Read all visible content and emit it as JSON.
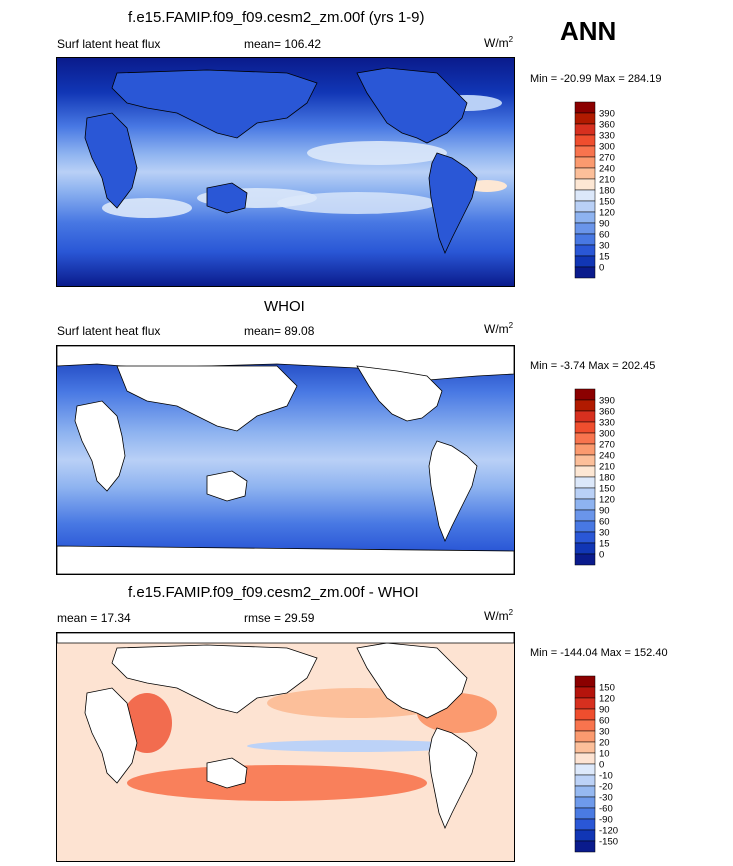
{
  "season": "ANN",
  "panels": [
    {
      "title": "f.e15.FAMIP.f09_f09.cesm2_zm.00f (yrs 1-9)",
      "left_label": "Surf latent heat flux",
      "mean_text": "mean= 106.42",
      "units": "W/m",
      "units_exp": "2",
      "minmax": "Min = -20.99 Max = 284.19",
      "colorbar": {
        "levels": [
          "390",
          "360",
          "330",
          "300",
          "270",
          "240",
          "210",
          "180",
          "150",
          "120",
          "90",
          "60",
          "30",
          "15",
          "0"
        ],
        "colors": [
          "#8b0000",
          "#b11a00",
          "#d7301f",
          "#ef4e2e",
          "#f8744e",
          "#fb9a6f",
          "#fcbf9a",
          "#fde7d4",
          "#dce8fa",
          "#b9d0f6",
          "#8eb3f0",
          "#6a95ea",
          "#4878e3",
          "#2a57d6",
          "#1136b5",
          "#0a1b8c"
        ]
      }
    },
    {
      "title": "WHOI",
      "left_label": "Surf latent heat flux",
      "mean_text": "mean=  89.08",
      "units": "W/m",
      "units_exp": "2",
      "minmax": "Min =  -3.74 Max = 202.45",
      "colorbar": {
        "levels": [
          "390",
          "360",
          "330",
          "300",
          "270",
          "240",
          "210",
          "180",
          "150",
          "120",
          "90",
          "60",
          "30",
          "15",
          "0"
        ],
        "colors": [
          "#8b0000",
          "#b11a00",
          "#d7301f",
          "#ef4e2e",
          "#f8744e",
          "#fb9a6f",
          "#fcbf9a",
          "#fde7d4",
          "#dce8fa",
          "#b9d0f6",
          "#8eb3f0",
          "#6a95ea",
          "#4878e3",
          "#2a57d6",
          "#1136b5",
          "#0a1b8c"
        ]
      }
    },
    {
      "title": "f.e15.FAMIP.f09_f09.cesm2_zm.00f - WHOI",
      "left_label": "mean =  17.34",
      "mean_text": "rmse =  29.59",
      "units": "W/m",
      "units_exp": "2",
      "minmax": "Min = -144.04 Max = 152.40",
      "colorbar": {
        "levels": [
          "150",
          "120",
          "90",
          "60",
          "30",
          "20",
          "10",
          "0",
          "-10",
          "-20",
          "-30",
          "-60",
          "-90",
          "-120",
          "-150"
        ],
        "colors": [
          "#8b0000",
          "#b5140c",
          "#d7301f",
          "#ef4e2e",
          "#f8744e",
          "#fb9a6f",
          "#fcbf9a",
          "#fde3d2",
          "#dde9fb",
          "#bcd2f7",
          "#96b9f1",
          "#6e9aeb",
          "#4a7be3",
          "#2a57d6",
          "#1136b5",
          "#0a1b8c"
        ]
      }
    }
  ]
}
